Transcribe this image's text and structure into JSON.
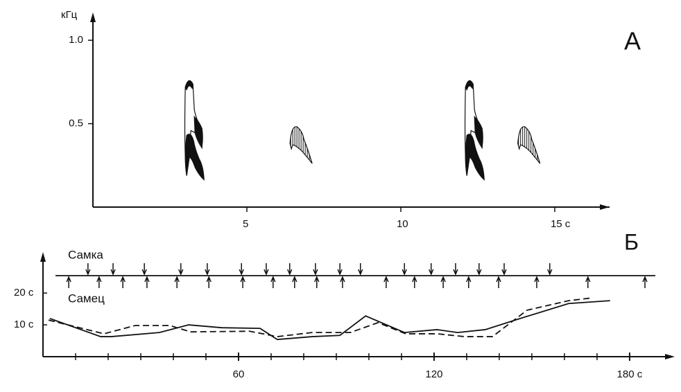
{
  "chart_data": [
    {
      "type": "spectrogram",
      "panel_label": "А",
      "ylabel": "кГц",
      "x": [
        3.0,
        6.4,
        12.1,
        13.8
      ],
      "values": [
        0.77,
        0.49,
        0.77,
        0.49
      ],
      "xlim": [
        0,
        16.6
      ],
      "xticks": [
        5,
        10,
        {
          "value": 15,
          "label": "15 с"
        }
      ],
      "ylim": [
        0,
        1.15
      ],
      "yticks": [
        0.5,
        {
          "value": 1,
          "label": "1.0"
        }
      ],
      "color": "#111111"
    },
    {
      "type": "line",
      "panel_label": "Б",
      "events": [
        {
          "label": "Самка",
          "direction": "down",
          "x": [
            13.8,
            21.5,
            31.1,
            42.3,
            50.4,
            60.9,
            68.5,
            75.7,
            83.6,
            91.1,
            97.4,
            110.9,
            119.1,
            126.6,
            133.8,
            141.5,
            155.5
          ]
        },
        {
          "label": "Самец",
          "direction": "up",
          "x": [
            7.9,
            17.2,
            24.5,
            31.9,
            41.1,
            50.9,
            61.3,
            70.6,
            77.2,
            84.0,
            91.9,
            105.3,
            114.0,
            122.8,
            130.6,
            139.8,
            151.5,
            167.2,
            184.7
          ]
        }
      ],
      "series": [
        {
          "color": "#111111",
          "dashed": false,
          "x": [
            2.1,
            17.7,
            20.9,
            35.7,
            44.7,
            54.9,
            66.6,
            71.9,
            82.6,
            91.1,
            99,
            110.9,
            120.9,
            127.2,
            135.7,
            146.4,
            161.3,
            174
          ],
          "values": [
            12,
            6.3,
            6.3,
            7.6,
            10,
            9.1,
            8.9,
            5.4,
            6.3,
            6.7,
            12.8,
            7.6,
            8.5,
            7.6,
            8.5,
            12,
            16.7,
            17.6
          ]
        },
        {
          "color": "#111111",
          "dashed": true,
          "x": [
            1.7,
            18.7,
            28.3,
            38.9,
            45.3,
            63.4,
            71.9,
            82.6,
            94.3,
            102.8,
            111.3,
            120.9,
            129.4,
            137.9,
            148.5,
            161.3,
            168.7
          ],
          "values": [
            11.5,
            7.2,
            9.8,
            9.8,
            7.8,
            8.0,
            6.3,
            7.6,
            7.6,
            10.7,
            7.2,
            7.2,
            6.3,
            6.3,
            14.6,
            17.6,
            18.5
          ]
        }
      ],
      "xlim": [
        0,
        193
      ],
      "xticks": [
        60,
        120,
        {
          "value": 180,
          "label": "180 с"
        }
      ],
      "xticks_minor": [
        10,
        20,
        30,
        40,
        50,
        70,
        80,
        90,
        100,
        110,
        130,
        140,
        150,
        160,
        170
      ],
      "ylim": [
        0,
        32
      ],
      "yticks": [
        {
          "value": 10,
          "label": "10 с"
        },
        {
          "value": 20,
          "label": "20 с"
        }
      ]
    }
  ]
}
